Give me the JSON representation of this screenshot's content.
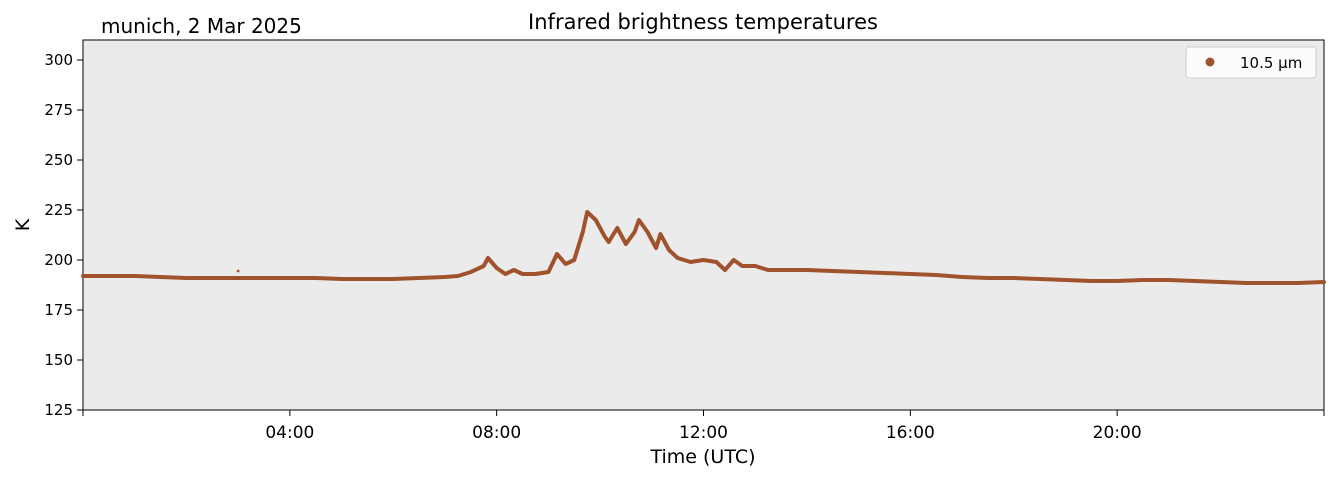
{
  "chart_data": {
    "type": "scatter",
    "title": "Infrared brightness temperatures",
    "subtitle": "munich, 2 Mar 2025",
    "xlabel": "Time (UTC)",
    "ylabel": "K",
    "xlim": [
      "00:00",
      "24:00"
    ],
    "ylim": [
      125,
      310
    ],
    "x_ticks": [
      "04:00",
      "08:00",
      "12:00",
      "16:00",
      "20:00"
    ],
    "y_ticks": [
      "125",
      "150",
      "175",
      "200",
      "225",
      "250",
      "275",
      "300"
    ],
    "grid": false,
    "legend_position": "top-right",
    "series": [
      {
        "name": "10.5 µm",
        "color": "#a0522d",
        "points": [
          [
            "00:00",
            192
          ],
          [
            "00:30",
            192
          ],
          [
            "01:00",
            192
          ],
          [
            "01:30",
            191.5
          ],
          [
            "02:00",
            191
          ],
          [
            "02:30",
            191
          ],
          [
            "03:00",
            191
          ],
          [
            "03:30",
            191
          ],
          [
            "04:00",
            191
          ],
          [
            "04:30",
            191
          ],
          [
            "05:00",
            190.5
          ],
          [
            "05:30",
            190.5
          ],
          [
            "06:00",
            190.5
          ],
          [
            "06:30",
            191
          ],
          [
            "07:00",
            191.5
          ],
          [
            "07:15",
            192
          ],
          [
            "07:30",
            194
          ],
          [
            "07:45",
            197
          ],
          [
            "07:50",
            201
          ],
          [
            "08:00",
            196
          ],
          [
            "08:10",
            193
          ],
          [
            "08:20",
            195
          ],
          [
            "08:30",
            193
          ],
          [
            "08:45",
            193
          ],
          [
            "09:00",
            194
          ],
          [
            "09:10",
            203
          ],
          [
            "09:20",
            198
          ],
          [
            "09:30",
            200
          ],
          [
            "09:40",
            214
          ],
          [
            "09:45",
            224
          ],
          [
            "09:55",
            220
          ],
          [
            "10:05",
            212
          ],
          [
            "10:10",
            209
          ],
          [
            "10:20",
            216
          ],
          [
            "10:30",
            208
          ],
          [
            "10:40",
            214
          ],
          [
            "10:45",
            220
          ],
          [
            "10:55",
            214
          ],
          [
            "11:05",
            206
          ],
          [
            "11:10",
            213
          ],
          [
            "11:20",
            205
          ],
          [
            "11:30",
            201
          ],
          [
            "11:45",
            199
          ],
          [
            "12:00",
            200
          ],
          [
            "12:15",
            199
          ],
          [
            "12:25",
            195
          ],
          [
            "12:35",
            200
          ],
          [
            "12:45",
            197
          ],
          [
            "13:00",
            197
          ],
          [
            "13:15",
            195
          ],
          [
            "13:30",
            195
          ],
          [
            "14:00",
            195
          ],
          [
            "14:30",
            194.5
          ],
          [
            "15:00",
            194
          ],
          [
            "15:30",
            193.5
          ],
          [
            "16:00",
            193
          ],
          [
            "16:30",
            192.5
          ],
          [
            "17:00",
            191.5
          ],
          [
            "17:30",
            191
          ],
          [
            "18:00",
            191
          ],
          [
            "18:30",
            190.5
          ],
          [
            "19:00",
            190
          ],
          [
            "19:30",
            189.5
          ],
          [
            "20:00",
            189.5
          ],
          [
            "20:30",
            190
          ],
          [
            "21:00",
            190
          ],
          [
            "21:30",
            189.5
          ],
          [
            "22:00",
            189
          ],
          [
            "22:30",
            188.5
          ],
          [
            "23:00",
            188.5
          ],
          [
            "23:30",
            188.5
          ],
          [
            "24:00",
            189
          ]
        ],
        "outliers": [
          [
            "03:00",
            194.5
          ]
        ]
      }
    ]
  }
}
